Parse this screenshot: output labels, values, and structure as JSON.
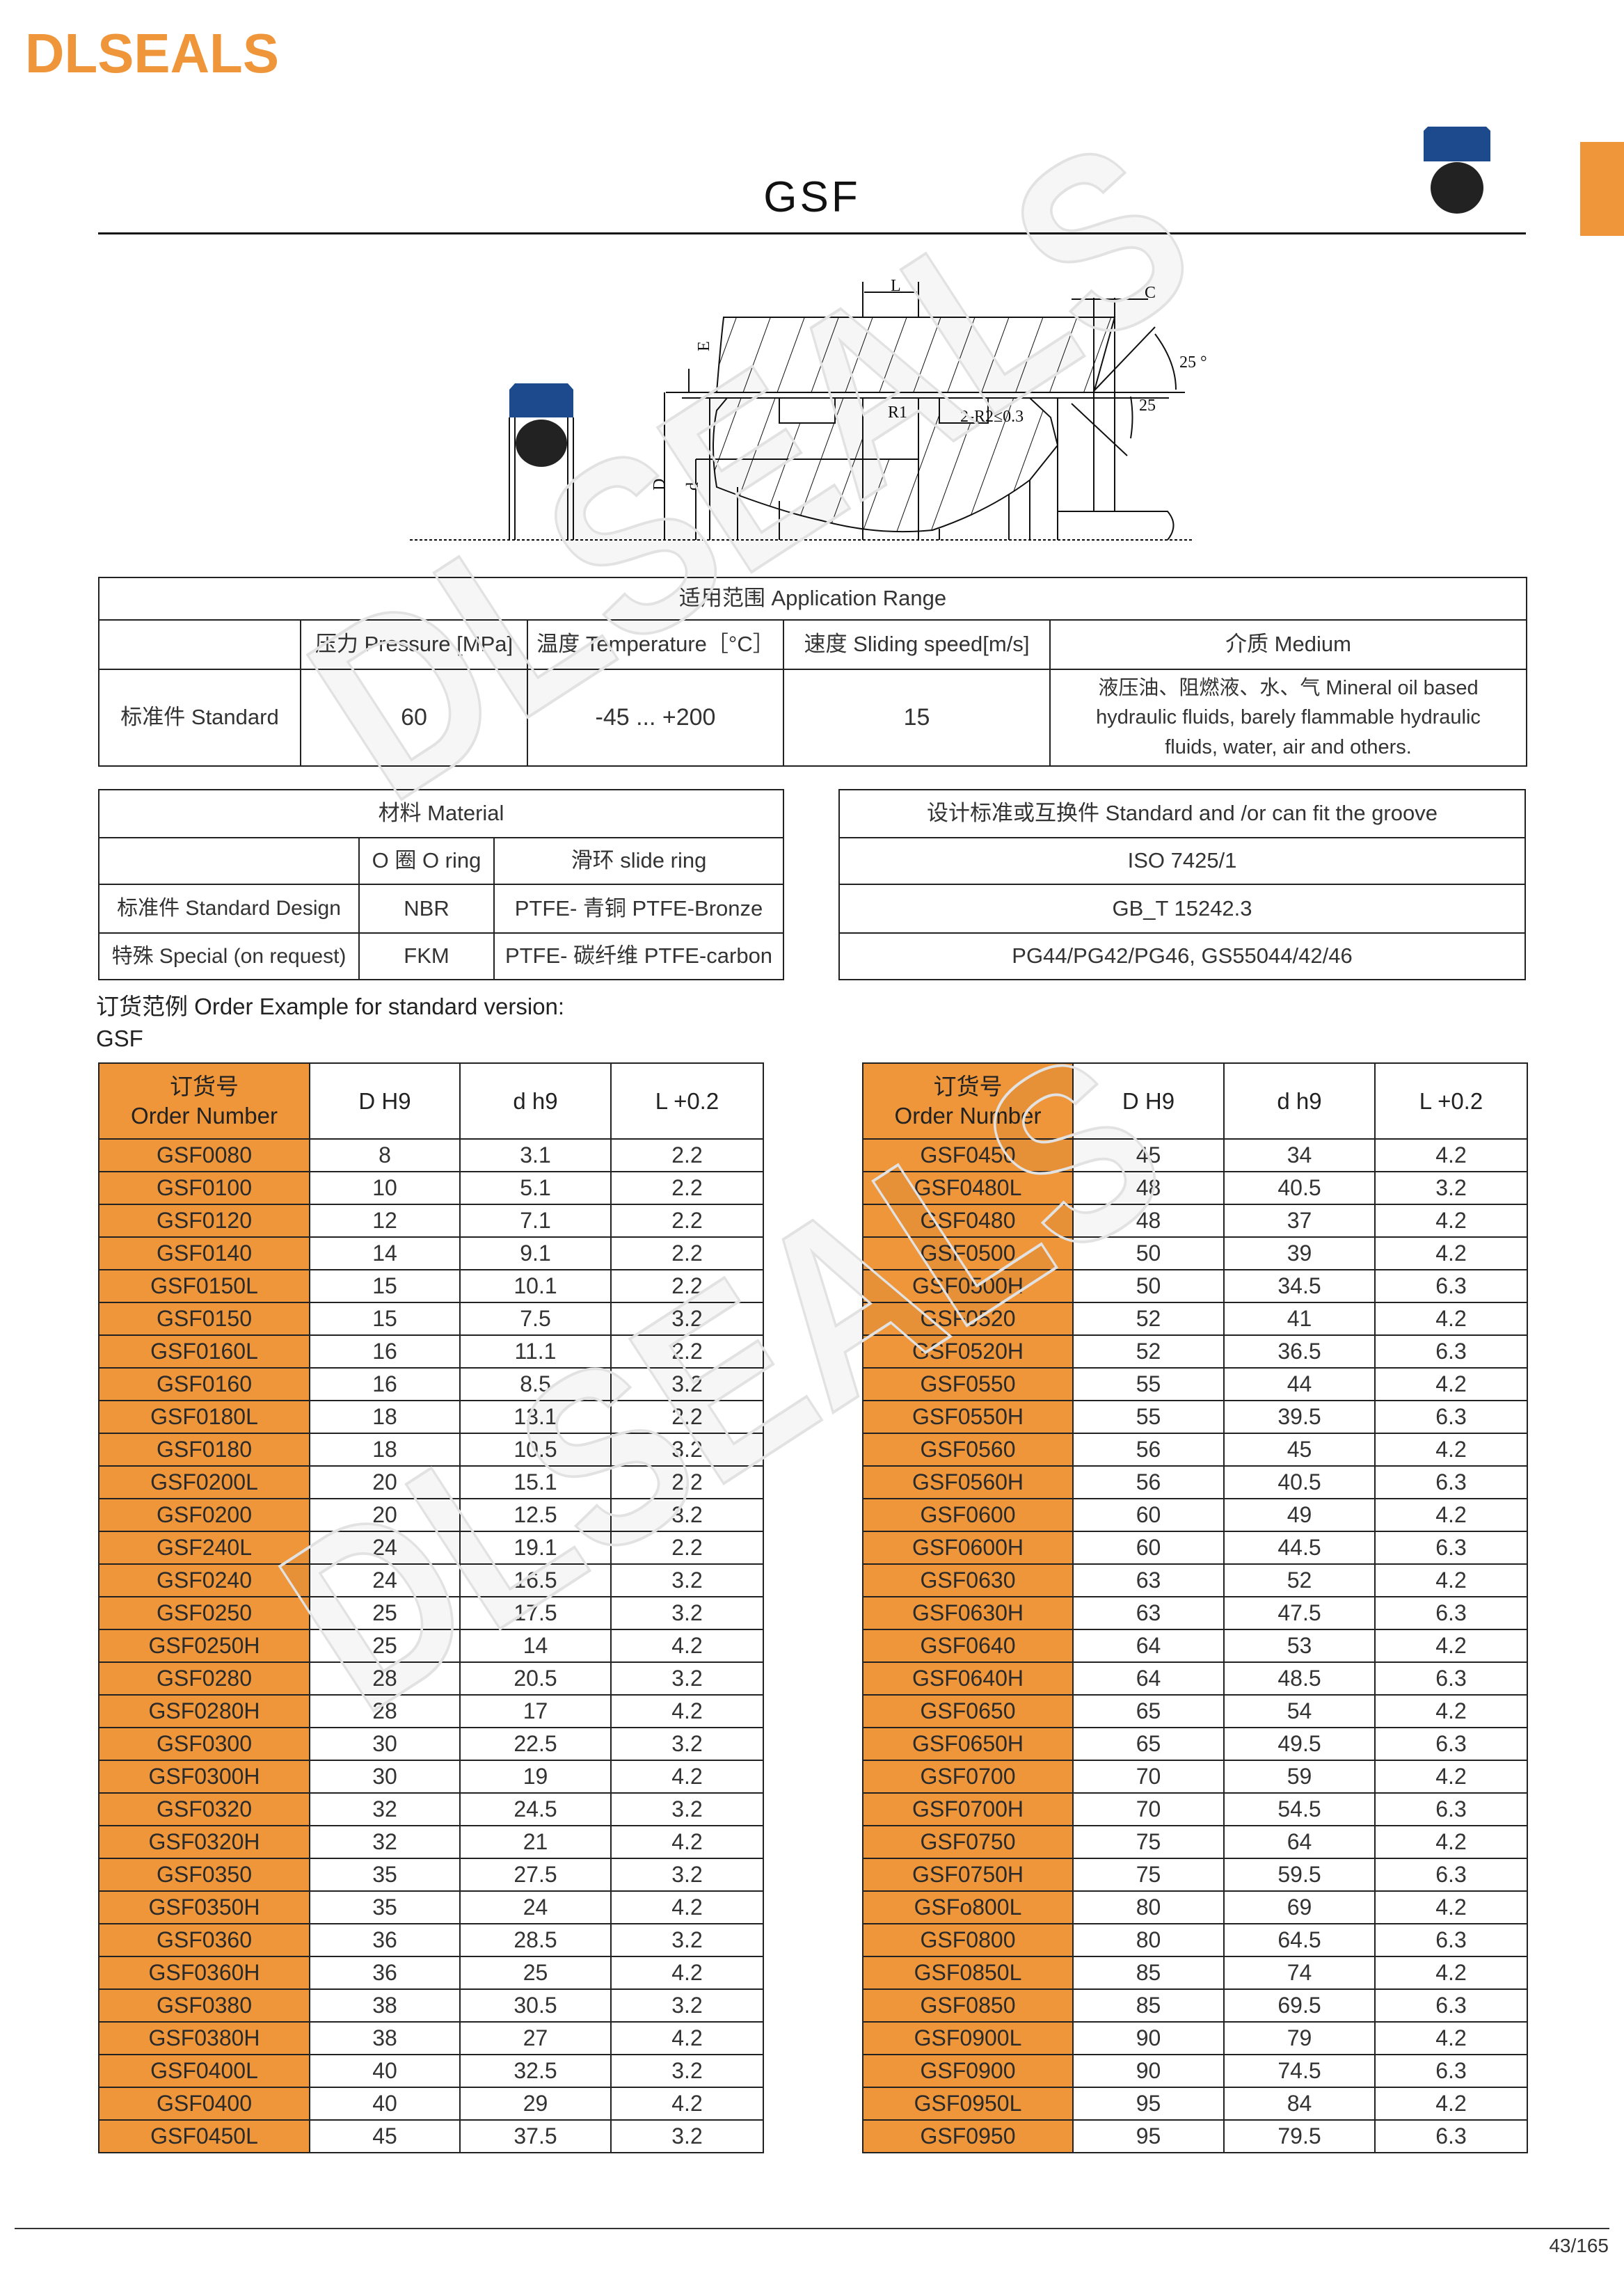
{
  "brand": {
    "logo_text": "DLSEALS",
    "accent_color": "#ef963a",
    "seal_blue": "#1c4a8c"
  },
  "title": "GSF",
  "diagram": {
    "labels": {
      "L": "L",
      "C": "C",
      "E": "E",
      "angle_top": "25 °",
      "angle_bottom": "25",
      "R1": "R1",
      "R2": "2-R2≤0.3",
      "D": "D",
      "d": "d"
    }
  },
  "application": {
    "heading": "适用范围 Application Range",
    "columns": [
      "压力 Pressure [MPa]",
      "温度 Temperature［°C］",
      "速度 Sliding speed[m/s]",
      "介质 Medium"
    ],
    "row": {
      "label": "标准件 Standard",
      "pressure": "60",
      "temperature": "-45 ... +200",
      "speed": "15",
      "medium": "液压油、阻燃液、水、气 Mineral oil based hydraulic fluids, barely flammable hydraulic fluids, water, air and others."
    }
  },
  "material": {
    "heading": "材料 Material",
    "columns": [
      "O 圈 O ring",
      "滑环 slide ring"
    ],
    "rows": [
      {
        "label": "标准件 Standard Design",
        "oring": "NBR",
        "slide": "PTFE- 青铜 PTFE-Bronze"
      },
      {
        "label": "特殊 Special (on request)",
        "oring": "FKM",
        "slide": "PTFE- 碳纤维 PTFE-carbon"
      }
    ]
  },
  "standards": {
    "heading": "设计标准或互换件 Standard and /or can fit the groove",
    "items": [
      "ISO 7425/1",
      "GB_T 15242.3",
      "PG44/PG42/PG46, GS55044/42/46"
    ]
  },
  "order_example": {
    "line1": "订货范例 Order Example for standard version:",
    "line2": "GSF"
  },
  "order_table": {
    "headers": {
      "order_cn": "订货号",
      "order_en": "Order Number",
      "D": "D H9",
      "d": "d h9",
      "L": "L +0.2"
    },
    "left": [
      [
        "GSF0080",
        "8",
        "3.1",
        "2.2"
      ],
      [
        "GSF0100",
        "10",
        "5.1",
        "2.2"
      ],
      [
        "GSF0120",
        "12",
        "7.1",
        "2.2"
      ],
      [
        "GSF0140",
        "14",
        "9.1",
        "2.2"
      ],
      [
        "GSF0150L",
        "15",
        "10.1",
        "2.2"
      ],
      [
        "GSF0150",
        "15",
        "7.5",
        "3.2"
      ],
      [
        "GSF0160L",
        "16",
        "11.1",
        "2.2"
      ],
      [
        "GSF0160",
        "16",
        "8.5",
        "3.2"
      ],
      [
        "GSF0180L",
        "18",
        "13.1",
        "2.2"
      ],
      [
        "GSF0180",
        "18",
        "10.5",
        "3.2"
      ],
      [
        "GSF0200L",
        "20",
        "15.1",
        "2.2"
      ],
      [
        "GSF0200",
        "20",
        "12.5",
        "3.2"
      ],
      [
        "GSF240L",
        "24",
        "19.1",
        "2.2"
      ],
      [
        "GSF0240",
        "24",
        "16.5",
        "3.2"
      ],
      [
        "GSF0250",
        "25",
        "17.5",
        "3.2"
      ],
      [
        "GSF0250H",
        "25",
        "14",
        "4.2"
      ],
      [
        "GSF0280",
        "28",
        "20.5",
        "3.2"
      ],
      [
        "GSF0280H",
        "28",
        "17",
        "4.2"
      ],
      [
        "GSF0300",
        "30",
        "22.5",
        "3.2"
      ],
      [
        "GSF0300H",
        "30",
        "19",
        "4.2"
      ],
      [
        "GSF0320",
        "32",
        "24.5",
        "3.2"
      ],
      [
        "GSF0320H",
        "32",
        "21",
        "4.2"
      ],
      [
        "GSF0350",
        "35",
        "27.5",
        "3.2"
      ],
      [
        "GSF0350H",
        "35",
        "24",
        "4.2"
      ],
      [
        "GSF0360",
        "36",
        "28.5",
        "3.2"
      ],
      [
        "GSF0360H",
        "36",
        "25",
        "4.2"
      ],
      [
        "GSF0380",
        "38",
        "30.5",
        "3.2"
      ],
      [
        "GSF0380H",
        "38",
        "27",
        "4.2"
      ],
      [
        "GSF0400L",
        "40",
        "32.5",
        "3.2"
      ],
      [
        "GSF0400",
        "40",
        "29",
        "4.2"
      ],
      [
        "GSF0450L",
        "45",
        "37.5",
        "3.2"
      ]
    ],
    "right": [
      [
        "GSF0450",
        "45",
        "34",
        "4.2"
      ],
      [
        "GSF0480L",
        "48",
        "40.5",
        "3.2"
      ],
      [
        "GSF0480",
        "48",
        "37",
        "4.2"
      ],
      [
        "GSF0500",
        "50",
        "39",
        "4.2"
      ],
      [
        "GSF0500H",
        "50",
        "34.5",
        "6.3"
      ],
      [
        "GSF0520",
        "52",
        "41",
        "4.2"
      ],
      [
        "GSF0520H",
        "52",
        "36.5",
        "6.3"
      ],
      [
        "GSF0550",
        "55",
        "44",
        "4.2"
      ],
      [
        "GSF0550H",
        "55",
        "39.5",
        "6.3"
      ],
      [
        "GSF0560",
        "56",
        "45",
        "4.2"
      ],
      [
        "GSF0560H",
        "56",
        "40.5",
        "6.3"
      ],
      [
        "GSF0600",
        "60",
        "49",
        "4.2"
      ],
      [
        "GSF0600H",
        "60",
        "44.5",
        "6.3"
      ],
      [
        "GSF0630",
        "63",
        "52",
        "4.2"
      ],
      [
        "GSF0630H",
        "63",
        "47.5",
        "6.3"
      ],
      [
        "GSF0640",
        "64",
        "53",
        "4.2"
      ],
      [
        "GSF0640H",
        "64",
        "48.5",
        "6.3"
      ],
      [
        "GSF0650",
        "65",
        "54",
        "4.2"
      ],
      [
        "GSF0650H",
        "65",
        "49.5",
        "6.3"
      ],
      [
        "GSF0700",
        "70",
        "59",
        "4.2"
      ],
      [
        "GSF0700H",
        "70",
        "54.5",
        "6.3"
      ],
      [
        "GSF0750",
        "75",
        "64",
        "4.2"
      ],
      [
        "GSF0750H",
        "75",
        "59.5",
        "6.3"
      ],
      [
        "GSFo800L",
        "80",
        "69",
        "4.2"
      ],
      [
        "GSF0800",
        "80",
        "64.5",
        "6.3"
      ],
      [
        "GSF0850L",
        "85",
        "74",
        "4.2"
      ],
      [
        "GSF0850",
        "85",
        "69.5",
        "6.3"
      ],
      [
        "GSF0900L",
        "90",
        "79",
        "4.2"
      ],
      [
        "GSF0900",
        "90",
        "74.5",
        "6.3"
      ],
      [
        "GSF0950L",
        "95",
        "84",
        "4.2"
      ],
      [
        "GSF0950",
        "95",
        "79.5",
        "6.3"
      ]
    ]
  },
  "page_number": "43/165"
}
